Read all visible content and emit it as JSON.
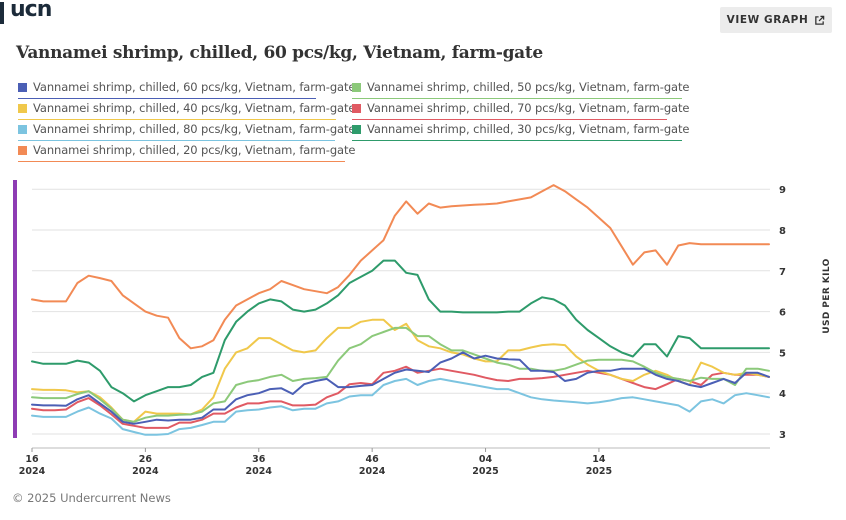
{
  "brand": {
    "logo_text": "ucn"
  },
  "header": {
    "view_graph_label": "VIEW GRAPH",
    "view_graph_icon": "external-link-icon"
  },
  "title": "Vannamei shrimp, chilled, 60 pcs/kg, Vietnam, farm-gate",
  "footer": {
    "copyright": "© 2025 Undercurrent News"
  },
  "chart_data": {
    "type": "line",
    "ylabel": "USD PER KILO",
    "ylim": [
      2.8,
      9.2
    ],
    "y_ticks": [
      3,
      4,
      5,
      6,
      7,
      8,
      9
    ],
    "x_ticks": [
      {
        "week": "16",
        "year": "2024"
      },
      {
        "week": "26",
        "year": "2024"
      },
      {
        "week": "36",
        "year": "2024"
      },
      {
        "week": "46",
        "year": "2024"
      },
      {
        "week": "04",
        "year": "2025"
      },
      {
        "week": "14",
        "year": "2025"
      }
    ],
    "grid": true,
    "legend_position": "top",
    "series": [
      {
        "name": "Vannamei shrimp, chilled, 60 pcs/kg, Vietnam, farm-gate",
        "color": "#4b5fb5",
        "values": [
          3.72,
          3.7,
          3.7,
          3.69,
          3.85,
          3.95,
          3.75,
          3.55,
          3.3,
          3.25,
          3.3,
          3.35,
          3.33,
          3.35,
          3.35,
          3.4,
          3.6,
          3.6,
          3.85,
          3.95,
          4.0,
          4.1,
          4.12,
          3.98,
          4.22,
          4.3,
          4.35,
          4.15,
          4.15,
          4.18,
          4.2,
          4.35,
          4.5,
          4.58,
          4.55,
          4.52,
          4.75,
          4.85,
          5.0,
          4.85,
          4.92,
          4.85,
          4.83,
          4.82,
          4.55,
          4.55,
          4.52,
          4.3,
          4.35,
          4.5,
          4.55,
          4.55,
          4.6,
          4.6,
          4.6,
          4.45,
          4.35,
          4.3,
          4.2,
          4.15,
          4.25,
          4.35,
          4.25,
          4.5,
          4.5,
          4.4
        ]
      },
      {
        "name": "Vannamei shrimp, chilled, 50 pcs/kg, Vietnam, farm-gate",
        "color": "#8cc97a",
        "values": [
          3.9,
          3.88,
          3.88,
          3.88,
          3.98,
          4.05,
          3.85,
          3.62,
          3.35,
          3.3,
          3.4,
          3.45,
          3.45,
          3.47,
          3.48,
          3.55,
          3.75,
          3.8,
          4.2,
          4.28,
          4.32,
          4.4,
          4.45,
          4.3,
          4.35,
          4.37,
          4.4,
          4.8,
          5.1,
          5.2,
          5.4,
          5.5,
          5.6,
          5.6,
          5.4,
          5.4,
          5.2,
          5.05,
          5.05,
          4.95,
          4.85,
          4.75,
          4.7,
          4.6,
          4.6,
          4.55,
          4.55,
          4.6,
          4.7,
          4.8,
          4.82,
          4.82,
          4.82,
          4.78,
          4.65,
          4.5,
          4.4,
          4.35,
          4.3,
          4.38,
          4.35,
          4.35,
          4.2,
          4.6,
          4.6,
          4.55
        ]
      },
      {
        "name": "Vannamei shrimp, chilled, 40 pcs/kg, Vietnam, farm-gate",
        "color": "#f0c84b",
        "values": [
          4.1,
          4.08,
          4.08,
          4.07,
          4.02,
          4.05,
          3.9,
          3.65,
          3.35,
          3.3,
          3.55,
          3.5,
          3.5,
          3.5,
          3.48,
          3.6,
          3.9,
          4.6,
          5.0,
          5.1,
          5.35,
          5.35,
          5.2,
          5.05,
          5.0,
          5.05,
          5.35,
          5.6,
          5.6,
          5.75,
          5.8,
          5.8,
          5.55,
          5.7,
          5.3,
          5.15,
          5.1,
          5.0,
          4.95,
          4.85,
          4.78,
          4.78,
          5.05,
          5.05,
          5.12,
          5.18,
          5.2,
          5.18,
          4.9,
          4.7,
          4.55,
          4.45,
          4.35,
          4.3,
          4.45,
          4.55,
          4.45,
          4.3,
          4.2,
          4.75,
          4.65,
          4.5,
          4.45,
          4.5,
          4.45,
          4.4
        ]
      },
      {
        "name": "Vannamei shrimp, chilled, 70 pcs/kg, Vietnam, farm-gate",
        "color": "#e05a63",
        "values": [
          3.62,
          3.58,
          3.58,
          3.6,
          3.78,
          3.88,
          3.7,
          3.48,
          3.25,
          3.2,
          3.15,
          3.15,
          3.15,
          3.28,
          3.28,
          3.35,
          3.5,
          3.5,
          3.65,
          3.75,
          3.75,
          3.8,
          3.8,
          3.7,
          3.7,
          3.72,
          3.9,
          4.0,
          4.22,
          4.25,
          4.22,
          4.5,
          4.55,
          4.65,
          4.5,
          4.55,
          4.6,
          4.55,
          4.5,
          4.45,
          4.38,
          4.32,
          4.3,
          4.35,
          4.35,
          4.37,
          4.4,
          4.45,
          4.5,
          4.55,
          4.5,
          4.45,
          4.35,
          4.25,
          4.15,
          4.1,
          4.22,
          4.35,
          4.3,
          4.2,
          4.45,
          4.5,
          4.45,
          4.45,
          4.45,
          4.4
        ]
      },
      {
        "name": "Vannamei shrimp, chilled, 80 pcs/kg, Vietnam, farm-gate",
        "color": "#7cc4e0",
        "values": [
          3.45,
          3.42,
          3.42,
          3.42,
          3.55,
          3.65,
          3.5,
          3.38,
          3.12,
          3.05,
          2.98,
          2.98,
          3.0,
          3.12,
          3.15,
          3.22,
          3.3,
          3.3,
          3.55,
          3.58,
          3.6,
          3.65,
          3.68,
          3.58,
          3.62,
          3.62,
          3.75,
          3.8,
          3.92,
          3.95,
          3.95,
          4.2,
          4.3,
          4.35,
          4.2,
          4.3,
          4.35,
          4.3,
          4.25,
          4.2,
          4.15,
          4.1,
          4.1,
          4.0,
          3.9,
          3.85,
          3.82,
          3.8,
          3.78,
          3.75,
          3.78,
          3.82,
          3.88,
          3.9,
          3.85,
          3.8,
          3.75,
          3.7,
          3.55,
          3.8,
          3.85,
          3.75,
          3.95,
          4.0,
          3.95,
          3.9
        ]
      },
      {
        "name": "Vannamei shrimp, chilled, 30 pcs/kg, Vietnam, farm-gate",
        "color": "#2e9b6b",
        "values": [
          4.78,
          4.72,
          4.72,
          4.72,
          4.8,
          4.75,
          4.55,
          4.15,
          4.0,
          3.8,
          3.95,
          4.05,
          4.15,
          4.15,
          4.2,
          4.4,
          4.5,
          5.3,
          5.75,
          6.0,
          6.2,
          6.3,
          6.25,
          6.05,
          6.0,
          6.05,
          6.2,
          6.4,
          6.7,
          6.85,
          7.0,
          7.25,
          7.25,
          6.95,
          6.9,
          6.3,
          6.0,
          6.0,
          5.98,
          5.98,
          5.98,
          5.98,
          6.0,
          6.0,
          6.2,
          6.35,
          6.3,
          6.15,
          5.8,
          5.55,
          5.35,
          5.15,
          5.0,
          4.9,
          5.2,
          5.2,
          4.9,
          5.4,
          5.35,
          5.1,
          5.1,
          5.1,
          5.1,
          5.1,
          5.1,
          5.1
        ]
      },
      {
        "name": "Vannamei shrimp, chilled, 20 pcs/kg, Vietnam, farm-gate",
        "color": "#f28a55",
        "values": [
          6.3,
          6.25,
          6.25,
          6.25,
          6.7,
          6.88,
          6.82,
          6.75,
          6.4,
          6.2,
          6.0,
          5.9,
          5.85,
          5.35,
          5.1,
          5.15,
          5.3,
          5.8,
          6.15,
          6.3,
          6.45,
          6.55,
          6.75,
          6.65,
          6.55,
          6.5,
          6.45,
          6.6,
          6.9,
          7.25,
          7.5,
          7.75,
          8.35,
          8.7,
          8.4,
          8.65,
          8.55,
          8.58,
          8.6,
          8.62,
          8.63,
          8.65,
          8.7,
          8.75,
          8.8,
          8.95,
          9.1,
          8.95,
          8.75,
          8.55,
          8.3,
          8.05,
          7.6,
          7.15,
          7.45,
          7.5,
          7.15,
          7.62,
          7.68,
          7.65,
          7.65,
          7.65,
          7.65,
          7.65,
          7.65,
          7.65
        ]
      }
    ]
  }
}
